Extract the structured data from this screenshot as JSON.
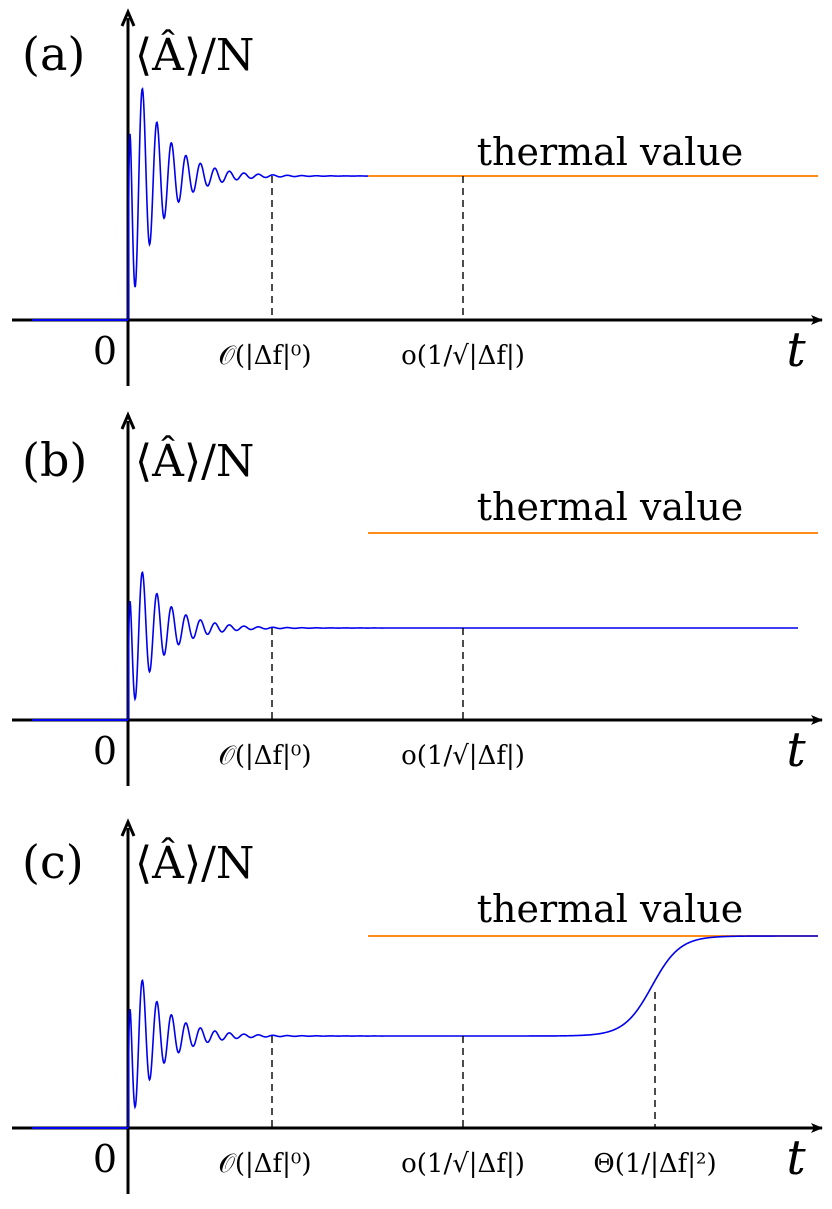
{
  "figure": {
    "colors": {
      "curve": "#0000ee",
      "thermal": "#ff8c1a",
      "axes": "#000000"
    },
    "panels": [
      {
        "label": "(a)",
        "ylabel": "⟨Â⟩/N",
        "thermal_label": "thermal value",
        "origin": "0",
        "xlabel": "t",
        "ticks": [
          "𝒪(|Δf|⁰)",
          "o(1/√|Δf|)"
        ],
        "plateau_matches_thermal": true,
        "final_rise": false
      },
      {
        "label": "(b)",
        "ylabel": "⟨Â⟩/N",
        "thermal_label": "thermal value",
        "origin": "0",
        "xlabel": "t",
        "ticks": [
          "𝒪(|Δf|⁰)",
          "o(1/√|Δf|)"
        ],
        "plateau_matches_thermal": false,
        "final_rise": false
      },
      {
        "label": "(c)",
        "ylabel": "⟨Â⟩/N",
        "thermal_label": "thermal value",
        "origin": "0",
        "xlabel": "t",
        "ticks": [
          "𝒪(|Δf|⁰)",
          "o(1/√|Δf|)",
          "Θ(1/|Δf|²)"
        ],
        "plateau_matches_thermal": false,
        "final_rise": true
      }
    ]
  }
}
